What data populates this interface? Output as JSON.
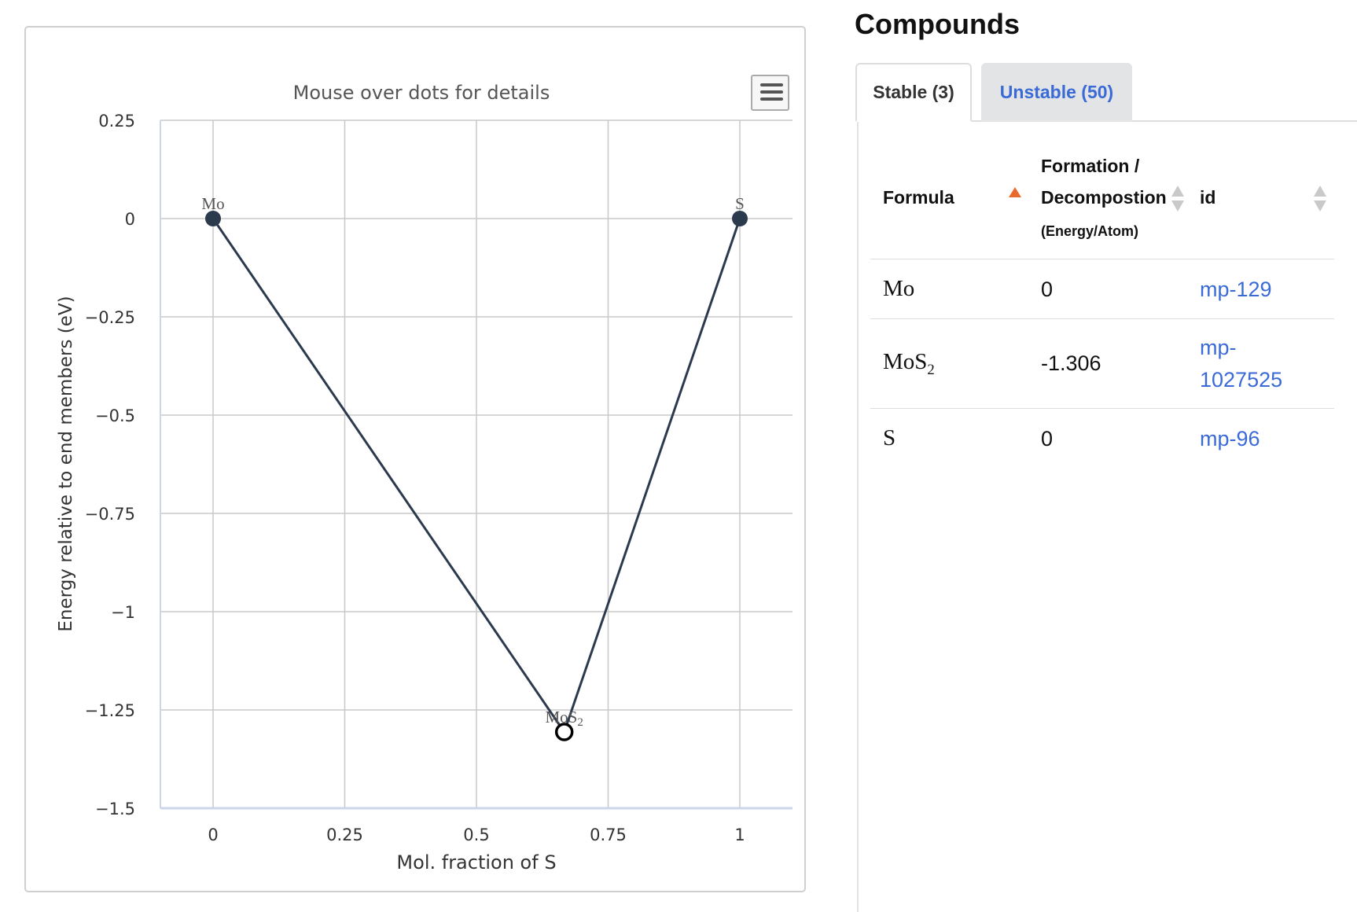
{
  "chart": {
    "subtitle": "Mouse over dots for details",
    "menu_icon": "hamburger-menu-icon",
    "axis_color": "#ccd6eb",
    "grid_color": "#c8c8c8",
    "line_color": "#2c3a4e"
  },
  "chart_data": {
    "type": "line",
    "title": "",
    "subtitle": "Mouse over dots for details",
    "xlabel": "Mol. fraction of S",
    "ylabel": "Energy relative to end members (eV)",
    "xlim": [
      -0.1,
      1.1
    ],
    "ylim": [
      -1.5,
      0.25
    ],
    "xticks": [
      0,
      0.25,
      0.5,
      0.75,
      1
    ],
    "xtick_labels": [
      "0",
      "0.25",
      "0.5",
      "0.75",
      "1"
    ],
    "yticks": [
      0.25,
      0,
      -0.25,
      -0.5,
      -0.75,
      -1,
      -1.25,
      -1.5
    ],
    "ytick_labels": [
      "0.25",
      "0",
      "−0.25",
      "−0.5",
      "−0.75",
      "−1",
      "−1.25",
      "−1.5"
    ],
    "grid": true,
    "series": [
      {
        "points": [
          {
            "x": 0,
            "y": 0,
            "label": "Mo",
            "marker": "filled"
          },
          {
            "x": 0.6667,
            "y": -1.306,
            "label": "MoS2",
            "marker": "open"
          },
          {
            "x": 1,
            "y": 0,
            "label": "S",
            "marker": "filled"
          }
        ]
      }
    ]
  },
  "panel": {
    "title": "Compounds",
    "tabs": [
      {
        "label": "Stable (3)",
        "active": true
      },
      {
        "label": "Unstable (50)",
        "active": false
      }
    ],
    "table": {
      "headers": {
        "formula": "Formula",
        "formation_line1": "Formation /",
        "formation_line2": "Decompostion",
        "formation_units": "(Energy/Atom)",
        "id": "id"
      },
      "rows": [
        {
          "formula": "Mo",
          "formula_sub": "",
          "energy": "0",
          "id_line1": "mp-129",
          "id_line2": ""
        },
        {
          "formula": "MoS",
          "formula_sub": "2",
          "energy": "-1.306",
          "id_line1": "mp-",
          "id_line2": "1027525"
        },
        {
          "formula": "S",
          "formula_sub": "",
          "energy": "0",
          "id_line1": "mp-96",
          "id_line2": ""
        }
      ]
    },
    "sort_active_color": "#e86b2c",
    "link_color": "#3a6ad6"
  }
}
